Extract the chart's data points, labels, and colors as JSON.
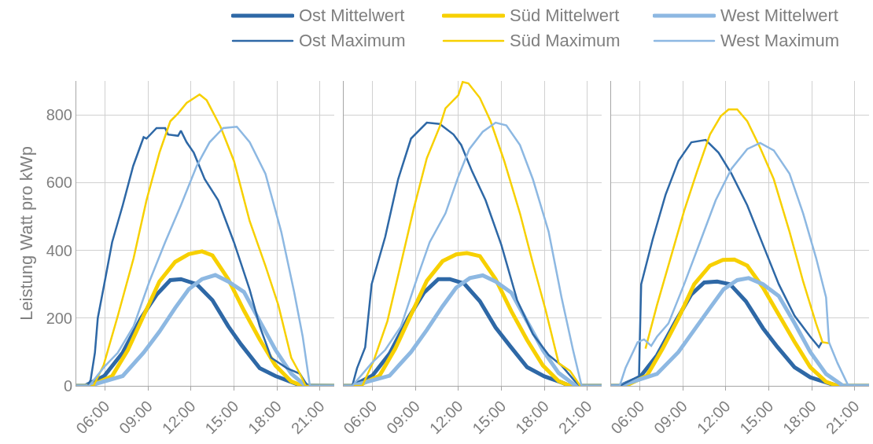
{
  "chart_data": [
    {
      "type": "line",
      "ylabel": "Leistung Watt pro kWp",
      "xlim": [
        4,
        22
      ],
      "xticks": [
        {
          "value": 6,
          "label": "06:00"
        },
        {
          "value": 9,
          "label": "09:00"
        },
        {
          "value": 12,
          "label": "12:00"
        },
        {
          "value": 15,
          "label": "15:00"
        },
        {
          "value": 18,
          "label": "18:00"
        },
        {
          "value": 21,
          "label": "21:00"
        }
      ],
      "ylim": [
        0,
        900
      ],
      "yticks": [
        0,
        200,
        400,
        600,
        800
      ],
      "grid": true,
      "legend": "top right",
      "marker": "none",
      "line_style": "solid",
      "series": [
        {
          "name": "Ost Mittelwert",
          "color": "#2e68a6",
          "x": [
            4,
            4.6,
            5.95,
            7.24,
            8.5,
            9.6,
            10.56,
            11.3,
            12.4,
            13.5,
            14.6,
            15.5,
            16.8,
            17.9,
            18.9,
            19.6,
            22
          ],
          "values": [
            0,
            0,
            29,
            98,
            199,
            269,
            312,
            315,
            300,
            253,
            176,
            122,
            52,
            29,
            13,
            2,
            0
          ]
        },
        {
          "name": "Süd Mittelwert",
          "color": "#f7d000",
          "x": [
            4,
            5,
            6.5,
            7.6,
            8.7,
            9.8,
            10.9,
            11.85,
            12.77,
            13.5,
            14.6,
            15.7,
            16.8,
            17.9,
            19,
            19.8,
            22
          ],
          "values": [
            0,
            0,
            29,
            106,
            207,
            308,
            366,
            389,
            397,
            385,
            315,
            222,
            137,
            60,
            13,
            0,
            0
          ]
        },
        {
          "name": "West Mittelwert",
          "color": "#8db8e2",
          "x": [
            4,
            4.9,
            7.24,
            8.7,
            9.8,
            10.9,
            11.85,
            12.77,
            13.7,
            14.6,
            15.7,
            16.8,
            17.9,
            19,
            20,
            22
          ],
          "values": [
            0,
            0,
            29,
            98,
            160,
            230,
            285,
            315,
            327,
            308,
            277,
            191,
            106,
            36,
            0,
            0
          ]
        },
        {
          "name": "Ost Maximum",
          "color": "#2e68a6",
          "x": [
            4,
            4.8,
            5,
            5.3,
            5.5,
            5.95,
            6.5,
            7.24,
            7.97,
            8.7,
            8.9,
            9.6,
            10.2,
            10.4,
            11.1,
            11.3,
            11.7,
            12.2,
            12.96,
            13.9,
            15,
            16.1,
            16.8,
            17.6,
            18.7,
            19.6,
            20,
            20.2,
            22
          ],
          "values": [
            0,
            0,
            17,
            98,
            200,
            300,
            424,
            533,
            649,
            734,
            730,
            761,
            761,
            742,
            738,
            753,
            719,
            688,
            610,
            548,
            424,
            284,
            176,
            83,
            52,
            36,
            9,
            0,
            0
          ]
        },
        {
          "name": "Süd Maximum",
          "color": "#f7d000",
          "x": [
            4,
            5.2,
            5.9,
            6.9,
            8,
            8.9,
            9.8,
            10.56,
            11.1,
            11.7,
            12.6,
            13.1,
            14.06,
            15,
            16.1,
            17.2,
            18.1,
            19,
            19.6,
            20,
            22
          ],
          "values": [
            0,
            0,
            60,
            207,
            377,
            548,
            688,
            781,
            804,
            835,
            860,
            843,
            765,
            664,
            486,
            354,
            238,
            83,
            36,
            0,
            0
          ]
        },
        {
          "name": "West Maximum",
          "color": "#8db8e2",
          "x": [
            4,
            4.9,
            5.95,
            6.9,
            8,
            9.1,
            10.2,
            11.3,
            12.4,
            13.3,
            14.25,
            15.2,
            16.1,
            17.2,
            18.3,
            19.2,
            19.8,
            20.3,
            22
          ],
          "values": [
            0,
            0,
            56,
            98,
            176,
            308,
            424,
            533,
            649,
            719,
            761,
            765,
            719,
            626,
            455,
            277,
            145,
            0,
            0
          ]
        }
      ]
    },
    {
      "type": "line",
      "xlim": [
        4,
        22
      ],
      "xticks": [
        {
          "value": 6,
          "label": "06:00"
        },
        {
          "value": 9,
          "label": "09:00"
        },
        {
          "value": 12,
          "label": "12:00"
        },
        {
          "value": 15,
          "label": "15:00"
        },
        {
          "value": 18,
          "label": "18:00"
        },
        {
          "value": 21,
          "label": "21:00"
        }
      ],
      "ylim": [
        0,
        900
      ],
      "yticks": [
        0,
        200,
        400,
        600,
        800
      ],
      "grid": true,
      "tick_labels": "x",
      "marker": "none",
      "line_style": "solid",
      "series": [
        {
          "color": "#2e68a6",
          "x": [
            4,
            4.6,
            6,
            7.2,
            8.5,
            9.6,
            10.6,
            11.4,
            12.4,
            13.5,
            14.6,
            15.6,
            16.8,
            18,
            19.2,
            19.8,
            22
          ],
          "values": [
            0,
            0,
            30,
            95,
            200,
            275,
            315,
            315,
            302,
            250,
            172,
            118,
            55,
            28,
            10,
            0,
            0
          ]
        },
        {
          "color": "#f7d000",
          "x": [
            4,
            5,
            6.5,
            7.6,
            8.7,
            9.8,
            10.9,
            11.85,
            12.6,
            13.5,
            14.6,
            15.7,
            16.8,
            17.9,
            19,
            19.8,
            22
          ],
          "values": [
            0,
            0,
            30,
            110,
            210,
            310,
            368,
            388,
            392,
            383,
            315,
            220,
            135,
            60,
            14,
            0,
            0
          ]
        },
        {
          "color": "#8db8e2",
          "x": [
            4,
            4.6,
            7.2,
            8.7,
            9.8,
            10.9,
            11.85,
            12.8,
            13.7,
            14.6,
            15.7,
            16.8,
            17.9,
            19,
            20.2,
            22
          ],
          "values": [
            0,
            0,
            30,
            100,
            165,
            235,
            290,
            318,
            326,
            308,
            275,
            190,
            105,
            38,
            0,
            0
          ]
        },
        {
          "color": "#2e68a6",
          "x": [
            4,
            4.6,
            4.93,
            5.5,
            5.95,
            6.9,
            7.8,
            8.7,
            9.8,
            10.7,
            11.66,
            12.2,
            12.96,
            13.9,
            15,
            16.1,
            17.2,
            18.3,
            19.2,
            20.15,
            20.5,
            22
          ],
          "values": [
            0,
            0,
            52,
            114,
            300,
            440,
            610,
            730,
            777,
            773,
            742,
            711,
            633,
            548,
            416,
            253,
            153,
            91,
            60,
            13,
            0,
            0
          ]
        },
        {
          "color": "#f7d000",
          "x": [
            4,
            5.3,
            6.1,
            7.05,
            8,
            8.9,
            9.8,
            10.7,
            11.1,
            12,
            12.3,
            12.7,
            13.5,
            14.25,
            15.2,
            16.3,
            17.2,
            18.1,
            19,
            19.8,
            20.5,
            22
          ],
          "values": [
            0,
            0,
            75,
            191,
            362,
            525,
            672,
            765,
            819,
            858,
            897,
            893,
            850,
            781,
            664,
            509,
            362,
            222,
            67,
            44,
            0,
            0
          ]
        },
        {
          "color": "#8db8e2",
          "x": [
            4,
            4.6,
            5.95,
            6.9,
            8,
            9.1,
            10,
            11.1,
            12,
            12.77,
            13.7,
            14.6,
            15.35,
            16.3,
            17.2,
            18.3,
            19.2,
            20,
            20.6,
            22
          ],
          "values": [
            0,
            0,
            67,
            106,
            176,
            315,
            424,
            509,
            618,
            699,
            750,
            777,
            769,
            711,
            610,
            455,
            261,
            106,
            0,
            0
          ]
        }
      ]
    },
    {
      "type": "line",
      "xlim": [
        4,
        22
      ],
      "xticks": [
        {
          "value": 6,
          "label": "06:00"
        },
        {
          "value": 9,
          "label": "09:00"
        },
        {
          "value": 12,
          "label": "12:00"
        },
        {
          "value": 15,
          "label": "15:00"
        },
        {
          "value": 18,
          "label": "18:00"
        },
        {
          "value": 21,
          "label": "21:00"
        }
      ],
      "ylim": [
        0,
        900
      ],
      "yticks": [
        0,
        200,
        400,
        600,
        800
      ],
      "grid": true,
      "tick_labels": "x",
      "marker": "none",
      "line_style": "solid",
      "series": [
        {
          "color": "#2e68a6",
          "x": [
            4,
            4.6,
            6,
            7.2,
            8.5,
            9.6,
            10.5,
            11.4,
            12.3,
            13.4,
            14.6,
            15.6,
            16.8,
            17.9,
            19,
            19.8,
            22
          ],
          "values": [
            0,
            0,
            25,
            90,
            190,
            270,
            305,
            308,
            300,
            250,
            170,
            115,
            55,
            25,
            10,
            0,
            0
          ]
        },
        {
          "color": "#f7d000",
          "x": [
            4,
            5,
            6.5,
            7.6,
            8.7,
            9.8,
            10.9,
            11.8,
            12.6,
            13.5,
            14.6,
            15.7,
            16.8,
            17.9,
            19,
            19.8,
            22
          ],
          "values": [
            0,
            0,
            30,
            110,
            200,
            300,
            355,
            372,
            373,
            355,
            290,
            210,
            130,
            55,
            12,
            0,
            0
          ]
        },
        {
          "color": "#8db8e2",
          "x": [
            4,
            4.6,
            7.2,
            8.7,
            9.8,
            10.9,
            11.85,
            12.8,
            13.6,
            14.6,
            15.7,
            16.8,
            17.9,
            19,
            20.2,
            22
          ],
          "values": [
            0,
            0,
            35,
            100,
            165,
            230,
            285,
            312,
            318,
            300,
            265,
            185,
            100,
            35,
            0,
            0
          ]
        },
        {
          "color": "#2e68a6",
          "x": [
            4,
            4.6,
            5.95,
            6,
            6.1,
            6.9,
            7.8,
            8.7,
            9.6,
            10.6,
            11.5,
            12.4,
            13.5,
            14.6,
            15.7,
            16.8,
            17.9,
            18.5,
            18.7
          ],
          "values": [
            0,
            0,
            29,
            129,
            300,
            432,
            564,
            664,
            719,
            726,
            688,
            626,
            533,
            416,
            300,
            207,
            145,
            114,
            129
          ]
        },
        {
          "color": "#f7d000",
          "x": [
            6.4,
            7.2,
            8.15,
            9.1,
            10,
            10.9,
            11.65,
            12.2,
            12.8,
            13.5,
            14.4,
            15.35,
            16.45,
            17.4,
            18.3,
            18.75,
            19.2
          ],
          "values": [
            110,
            238,
            377,
            517,
            633,
            742,
            796,
            816,
            816,
            781,
            703,
            610,
            455,
            308,
            184,
            129,
            126
          ]
        },
        {
          "color": "#8db8e2",
          "x": [
            4,
            4.6,
            5,
            5.85,
            6.3,
            6.8,
            7.2,
            8,
            9.1,
            10.2,
            11.3,
            12.4,
            13.5,
            14.4,
            15.35,
            16.45,
            17.4,
            18.3,
            19,
            19.2,
            19.8,
            20.5,
            20.7,
            22
          ],
          "values": [
            0,
            0,
            52,
            129,
            137,
            118,
            145,
            184,
            300,
            424,
            548,
            641,
            699,
            717,
            695,
            626,
            509,
            378,
            261,
            129,
            67,
            5,
            0,
            0
          ]
        }
      ]
    }
  ]
}
